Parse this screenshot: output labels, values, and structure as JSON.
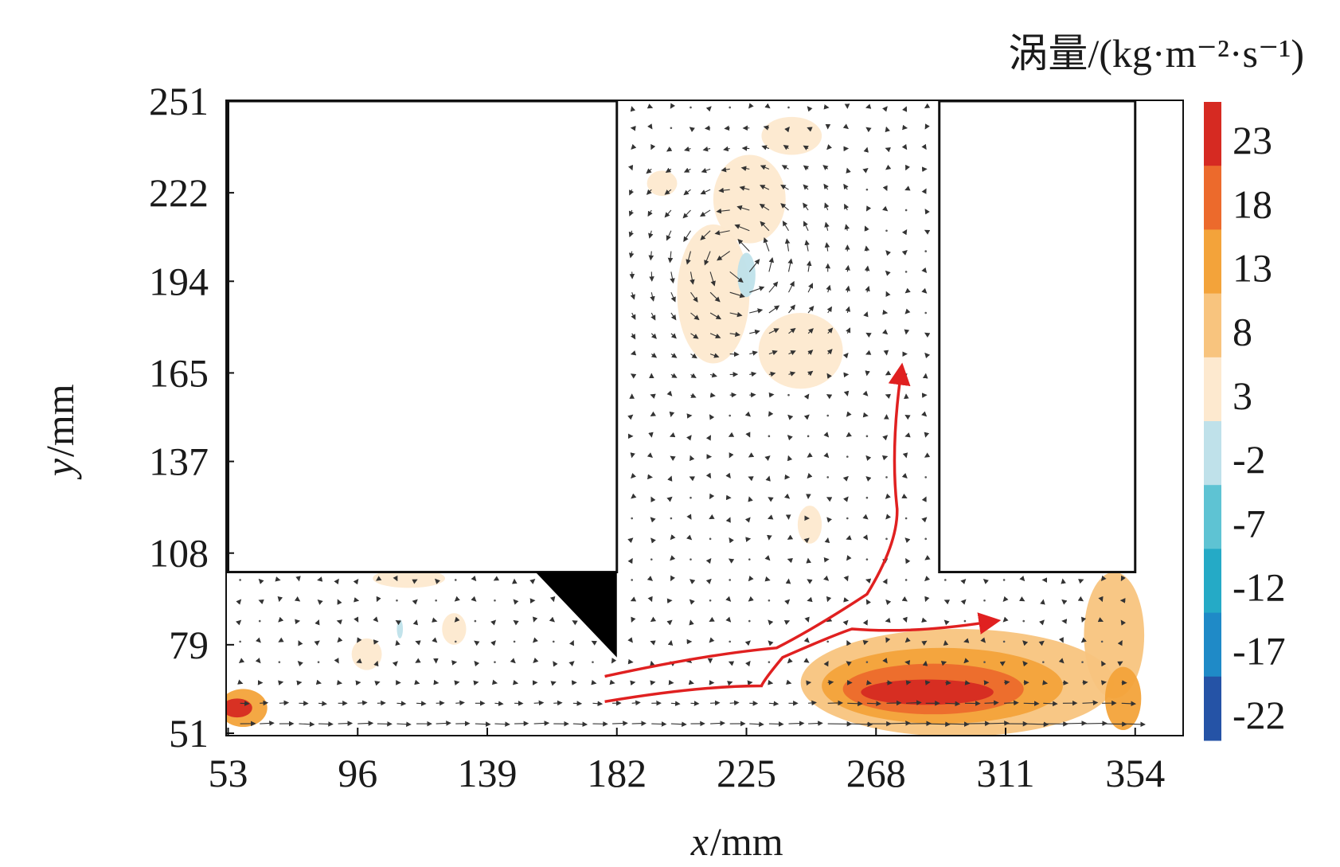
{
  "chart_data": {
    "type": "heatmap",
    "subtype": "vorticity contour with velocity vectors",
    "title": "",
    "xlabel": {
      "symbol": "x",
      "unit": "/mm"
    },
    "ylabel": {
      "symbol": "y",
      "unit": "/mm"
    },
    "x_ticks": [
      53,
      96,
      139,
      182,
      225,
      268,
      311,
      354
    ],
    "y_ticks": [
      51,
      79,
      108,
      137,
      165,
      194,
      222,
      251
    ],
    "xlim": [
      53,
      354
    ],
    "ylim": [
      51,
      251
    ],
    "colorbar": {
      "title": "涡量/(kg·m⁻²·s⁻¹)",
      "levels": [
        23,
        18,
        13,
        8,
        3,
        -2,
        -7,
        -12,
        -17,
        -22
      ],
      "colors": [
        "#d62a22",
        "#ec6a2c",
        "#f3a33a",
        "#f8c47e",
        "#fde9cf",
        "#bfe1ea",
        "#5ec3d3",
        "#25aac6",
        "#1f8ac7",
        "#2553a6"
      ]
    },
    "geometry": {
      "left_block": {
        "x": [
          53,
          182
        ],
        "y": [
          102,
          251
        ]
      },
      "right_block": {
        "x": [
          289,
          354
        ],
        "y": [
          102,
          251
        ]
      },
      "wedge": {
        "x": [
          155,
          182
        ],
        "y": [
          75,
          102
        ]
      }
    },
    "vorticity_regions": [
      {
        "level": 3,
        "cx": 214,
        "cy": 190,
        "rx": 12,
        "ry": 22
      },
      {
        "level": 3,
        "cx": 226,
        "cy": 220,
        "rx": 12,
        "ry": 14
      },
      {
        "level": 3,
        "cx": 243,
        "cy": 172,
        "rx": 14,
        "ry": 12
      },
      {
        "level": 3,
        "cx": 240,
        "cy": 240,
        "rx": 10,
        "ry": 6
      },
      {
        "level": 3,
        "cx": 197,
        "cy": 225,
        "rx": 5,
        "ry": 4
      },
      {
        "level": 3,
        "cx": 246,
        "cy": 117,
        "rx": 4,
        "ry": 6
      },
      {
        "level": -2,
        "cx": 225,
        "cy": 196,
        "rx": 3,
        "ry": 7
      },
      {
        "level": 13,
        "cx": 58,
        "cy": 59,
        "rx": 8,
        "ry": 6
      },
      {
        "level": 23,
        "cx": 56,
        "cy": 59,
        "rx": 5,
        "ry": 3
      },
      {
        "level": 3,
        "cx": 99,
        "cy": 76,
        "rx": 5,
        "ry": 5
      },
      {
        "level": 3,
        "cx": 128,
        "cy": 84,
        "rx": 4,
        "ry": 5
      },
      {
        "level": 3,
        "cx": 113,
        "cy": 100,
        "rx": 12,
        "ry": 3
      },
      {
        "level": -2,
        "cx": 110,
        "cy": 84,
        "rx": 1,
        "ry": 3
      },
      {
        "level": 8,
        "cx": 295,
        "cy": 67,
        "rx": 52,
        "ry": 17
      },
      {
        "level": 13,
        "cx": 290,
        "cy": 66,
        "rx": 40,
        "ry": 12
      },
      {
        "level": 18,
        "cx": 287,
        "cy": 65,
        "rx": 30,
        "ry": 8
      },
      {
        "level": 23,
        "cx": 285,
        "cy": 64,
        "rx": 22,
        "ry": 4
      },
      {
        "level": 8,
        "cx": 347,
        "cy": 82,
        "rx": 10,
        "ry": 20
      },
      {
        "level": 13,
        "cx": 350,
        "cy": 62,
        "rx": 6,
        "ry": 10
      }
    ],
    "flow_paths": [
      {
        "color": "#e02020",
        "points": [
          [
            178,
            69
          ],
          [
            235,
            78
          ],
          [
            265,
            95
          ],
          [
            275,
            122
          ],
          [
            276,
            163
          ]
        ]
      },
      {
        "color": "#e02020",
        "points": [
          [
            178,
            61
          ],
          [
            230,
            66
          ],
          [
            237,
            75
          ],
          [
            260,
            84
          ],
          [
            304,
            86
          ]
        ]
      }
    ]
  }
}
